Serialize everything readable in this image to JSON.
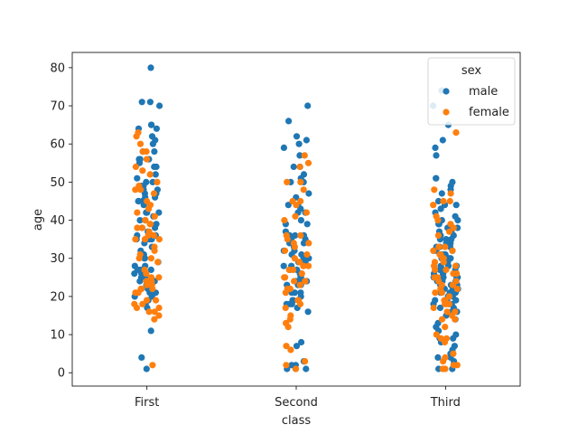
{
  "chart_data": {
    "type": "scatter",
    "subtype": "stripplot",
    "title": "",
    "xlabel": "class",
    "ylabel": "age",
    "categories": [
      "First",
      "Second",
      "Third"
    ],
    "ylim": [
      -3.5,
      84
    ],
    "yticks": [
      0,
      10,
      20,
      30,
      40,
      50,
      60,
      70,
      80
    ],
    "grid": false,
    "legend": {
      "title": "sex",
      "placement": "top-right"
    },
    "colors": {
      "male": "#1f77b4",
      "female": "#ff7f0e"
    },
    "series": [
      {
        "name": "male",
        "points": [
          {
            "category": "First",
            "values": [
              80,
              71,
              71,
              70,
              65,
              65,
              64,
              64,
              62,
              61,
              60,
              58,
              58,
              56,
              56,
              56,
              55,
              54,
              54,
              52,
              51,
              50,
              50,
              49,
              49,
              48,
              48,
              47,
              47,
              46,
              46,
              45,
              45,
              45,
              44,
              42,
              42,
              42,
              41,
              40,
              40,
              39,
              38,
              38,
              37,
              36,
              36,
              36,
              35,
              35,
              35,
              34,
              33,
              32,
              31,
              30,
              30,
              29,
              28,
              28,
              27,
              27,
              27,
              26,
              26,
              25,
              25,
              24,
              24,
              23,
              22,
              21,
              21,
              20,
              20,
              19,
              18,
              17,
              11,
              4,
              1
            ]
          },
          {
            "category": "Second",
            "values": [
              70,
              66,
              62,
              61,
              60,
              59,
              57,
              54,
              54,
              52,
              51,
              50,
              50,
              47,
              46,
              44,
              44,
              43,
              42,
              42,
              40,
              39,
              39,
              37,
              36,
              36,
              36,
              35,
              35,
              34,
              34,
              33,
              32,
              32,
              31,
              31,
              30,
              30,
              30,
              29,
              29,
              28,
              28,
              27,
              27,
              26,
              25,
              25,
              24,
              24,
              24,
              23,
              23,
              23,
              22,
              21,
              21,
              21,
              20,
              19,
              19,
              18,
              18,
              18,
              17,
              16,
              8,
              7,
              3,
              3,
              2,
              2,
              1,
              1,
              1
            ]
          },
          {
            "category": "Third",
            "values": [
              74,
              70,
              65,
              61,
              59,
              57,
              51,
              51,
              50,
              49,
              48,
              47,
              45,
              44,
              44,
              43,
              42,
              41,
              40,
              40,
              39,
              39,
              38,
              38,
              37,
              37,
              36,
              36,
              35,
              35,
              35,
              34,
              34,
              33,
              33,
              33,
              32,
              32,
              32,
              31,
              31,
              31,
              30,
              30,
              30,
              30,
              29,
              29,
              29,
              28,
              28,
              28,
              28,
              27,
              27,
              27,
              26,
              26,
              26,
              25,
              25,
              25,
              25,
              24,
              24,
              24,
              23,
              23,
              23,
              22,
              22,
              22,
              21,
              21,
              21,
              20,
              20,
              20,
              19,
              19,
              19,
              18,
              18,
              18,
              17,
              17,
              16,
              16,
              15,
              14,
              13,
              12,
              11,
              10,
              9,
              9,
              8,
              7,
              6,
              5,
              4,
              4,
              3,
              2,
              1,
              1
            ]
          }
        ]
      },
      {
        "name": "female",
        "points": [
          {
            "category": "First",
            "values": [
              63,
              62,
              60,
              58,
              58,
              56,
              54,
              53,
              52,
              50,
              49,
              48,
              48,
              47,
              45,
              44,
              43,
              42,
              41,
              40,
              39,
              39,
              38,
              38,
              37,
              36,
              36,
              35,
              35,
              35,
              33,
              32,
              31,
              30,
              30,
              29,
              27,
              26,
              25,
              25,
              24,
              24,
              24,
              23,
              23,
              22,
              22,
              22,
              21,
              21,
              19,
              19,
              18,
              18,
              17,
              17,
              16,
              16,
              15,
              14,
              2
            ]
          },
          {
            "category": "Second",
            "values": [
              57,
              55,
              54,
              50,
              50,
              48,
              45,
              45,
              44,
              42,
              41,
              40,
              36,
              36,
              35,
              34,
              34,
              33,
              32,
              31,
              30,
              29,
              28,
              28,
              28,
              27,
              27,
              26,
              25,
              25,
              24,
              24,
              24,
              23,
              22,
              22,
              21,
              19,
              19,
              18,
              17,
              15,
              14,
              13,
              12,
              7,
              6,
              3,
              2,
              1
            ]
          },
          {
            "category": "Third",
            "values": [
              63,
              48,
              47,
              45,
              45,
              44,
              41,
              40,
              39,
              38,
              37,
              36,
              33,
              33,
              32,
              32,
              31,
              31,
              30,
              30,
              29,
              29,
              28,
              28,
              27,
              27,
              26,
              26,
              25,
              25,
              24,
              24,
              23,
              23,
              22,
              22,
              21,
              21,
              20,
              19,
              19,
              18,
              18,
              18,
              17,
              16,
              16,
              15,
              14,
              14,
              12,
              10,
              9,
              9,
              8,
              5,
              4,
              3,
              2,
              2,
              1,
              1
            ]
          }
        ]
      }
    ]
  }
}
